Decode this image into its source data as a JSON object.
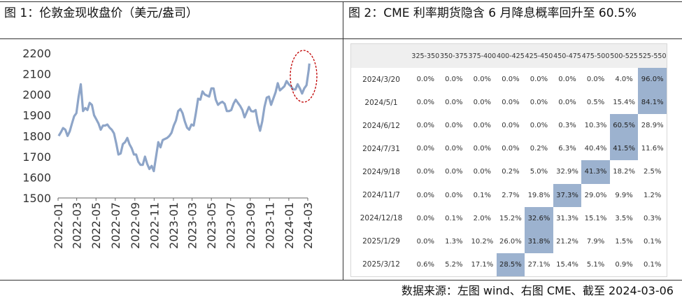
{
  "left_panel": {
    "title": "图 1：伦敦金现收盘价（美元/盎司）"
  },
  "right_panel": {
    "title": "图 2：CME 利率期货隐含 6 月降息概率回升至 60.5%"
  },
  "footer": {
    "source": "数据来源：左图 wind、右图 CME、截至 2024-03-06"
  },
  "chart_data": [
    {
      "type": "line",
      "title": "",
      "xlabel": "",
      "ylabel": "",
      "ylim": [
        1500,
        2200
      ],
      "yticks": [
        1500,
        1600,
        1700,
        1800,
        1900,
        2000,
        2100,
        2200
      ],
      "xticks": [
        "2022-01",
        "2022-03",
        "2022-05",
        "2022-07",
        "2022-09",
        "2022-11",
        "2023-01",
        "2023-03",
        "2023-05",
        "2023-07",
        "2023-09",
        "2023-11",
        "2024-01",
        "2024-03"
      ],
      "grid": false,
      "series": [
        {
          "color": "#8ea5c8",
          "x": [
            "2022-01-03",
            "2022-01-10",
            "2022-01-17",
            "2022-01-24",
            "2022-01-31",
            "2022-02-07",
            "2022-02-14",
            "2022-02-21",
            "2022-02-28",
            "2022-03-07",
            "2022-03-14",
            "2022-03-21",
            "2022-03-28",
            "2022-04-04",
            "2022-04-11",
            "2022-04-18",
            "2022-04-25",
            "2022-05-02",
            "2022-05-09",
            "2022-05-16",
            "2022-05-23",
            "2022-05-30",
            "2022-06-06",
            "2022-06-13",
            "2022-06-20",
            "2022-06-27",
            "2022-07-04",
            "2022-07-11",
            "2022-07-18",
            "2022-07-25",
            "2022-08-01",
            "2022-08-08",
            "2022-08-15",
            "2022-08-22",
            "2022-08-29",
            "2022-09-05",
            "2022-09-12",
            "2022-09-19",
            "2022-09-26",
            "2022-10-03",
            "2022-10-10",
            "2022-10-17",
            "2022-10-24",
            "2022-10-31",
            "2022-11-07",
            "2022-11-14",
            "2022-11-21",
            "2022-11-28",
            "2022-12-05",
            "2022-12-12",
            "2022-12-19",
            "2022-12-26",
            "2023-01-02",
            "2023-01-09",
            "2023-01-16",
            "2023-01-23",
            "2023-01-30",
            "2023-02-06",
            "2023-02-13",
            "2023-02-20",
            "2023-02-27",
            "2023-03-06",
            "2023-03-13",
            "2023-03-20",
            "2023-03-27",
            "2023-04-03",
            "2023-04-10",
            "2023-04-17",
            "2023-04-24",
            "2023-05-01",
            "2023-05-08",
            "2023-05-15",
            "2023-05-22",
            "2023-05-29",
            "2023-06-05",
            "2023-06-12",
            "2023-06-19",
            "2023-06-26",
            "2023-07-03",
            "2023-07-10",
            "2023-07-17",
            "2023-07-24",
            "2023-07-31",
            "2023-08-07",
            "2023-08-14",
            "2023-08-21",
            "2023-08-28",
            "2023-09-04",
            "2023-09-11",
            "2023-09-18",
            "2023-09-25",
            "2023-10-02",
            "2023-10-09",
            "2023-10-16",
            "2023-10-23",
            "2023-10-30",
            "2023-11-06",
            "2023-11-13",
            "2023-11-20",
            "2023-11-27",
            "2023-12-04",
            "2023-12-11",
            "2023-12-18",
            "2023-12-25",
            "2024-01-01",
            "2024-01-08",
            "2024-01-15",
            "2024-01-22",
            "2024-01-29",
            "2024-02-05",
            "2024-02-12",
            "2024-02-19",
            "2024-02-26",
            "2024-03-04",
            "2024-03-06"
          ],
          "values": [
            1800,
            1818,
            1838,
            1830,
            1800,
            1822,
            1860,
            1895,
            1910,
            1990,
            2050,
            1920,
            1935,
            1925,
            1960,
            1950,
            1900,
            1880,
            1860,
            1830,
            1850,
            1850,
            1855,
            1840,
            1830,
            1812,
            1765,
            1710,
            1715,
            1760,
            1770,
            1790,
            1760,
            1740,
            1710,
            1710,
            1675,
            1660,
            1660,
            1700,
            1665,
            1640,
            1655,
            1630,
            1700,
            1770,
            1745,
            1780,
            1785,
            1790,
            1800,
            1815,
            1850,
            1875,
            1920,
            1930,
            1910,
            1870,
            1840,
            1830,
            1855,
            1850,
            1910,
            1980,
            1975,
            2015,
            2000,
            1995,
            1990,
            2030,
            2030,
            1975,
            1950,
            1960,
            1965,
            1955,
            1920,
            1920,
            1925,
            1955,
            1975,
            1960,
            1945,
            1925,
            1890,
            1915,
            1940,
            1920,
            1918,
            1925,
            1865,
            1825,
            1870,
            1940,
            1985,
            1990,
            1950,
            1980,
            2010,
            2055,
            2020,
            2030,
            2040,
            2065,
            2050,
            2040,
            2025,
            2025,
            2050,
            2030,
            2005,
            2030,
            2045,
            2120,
            2150
          ]
        }
      ]
    },
    {
      "type": "table",
      "columns": [
        "325-350",
        "350-375",
        "375-400",
        "400-425",
        "425-450",
        "450-475",
        "475-500",
        "500-525",
        "525-550"
      ],
      "rows": [
        {
          "label": "2024/3/20",
          "values": [
            "0.0%",
            "0.0%",
            "0.0%",
            "0.0%",
            "0.0%",
            "0.0%",
            "0.0%",
            "4.0%",
            "96.0%"
          ],
          "highlight": 8
        },
        {
          "label": "2024/5/1",
          "values": [
            "0.0%",
            "0.0%",
            "0.0%",
            "0.0%",
            "0.0%",
            "0.0%",
            "0.5%",
            "15.4%",
            "84.1%"
          ],
          "highlight": 8
        },
        {
          "label": "2024/6/12",
          "values": [
            "0.0%",
            "0.0%",
            "0.0%",
            "0.0%",
            "0.0%",
            "0.3%",
            "10.3%",
            "60.5%",
            "28.9%"
          ],
          "highlight": 7
        },
        {
          "label": "2024/7/31",
          "values": [
            "0.0%",
            "0.0%",
            "0.0%",
            "0.0%",
            "0.2%",
            "6.3%",
            "40.4%",
            "41.5%",
            "11.6%"
          ],
          "highlight": 7
        },
        {
          "label": "2024/9/18",
          "values": [
            "0.0%",
            "0.0%",
            "0.0%",
            "0.2%",
            "5.0%",
            "32.9%",
            "41.3%",
            "18.2%",
            "2.5%"
          ],
          "highlight": 6
        },
        {
          "label": "2024/11/7",
          "values": [
            "0.0%",
            "0.0%",
            "0.1%",
            "2.7%",
            "19.8%",
            "37.3%",
            "29.0%",
            "9.9%",
            "1.2%"
          ],
          "highlight": 5
        },
        {
          "label": "2024/12/18",
          "values": [
            "0.0%",
            "0.1%",
            "2.0%",
            "15.2%",
            "32.6%",
            "31.3%",
            "15.1%",
            "3.5%",
            "0.3%"
          ],
          "highlight": 4
        },
        {
          "label": "2025/1/29",
          "values": [
            "0.0%",
            "1.3%",
            "10.2%",
            "26.0%",
            "31.8%",
            "21.2%",
            "7.9%",
            "1.5%",
            "0.1%"
          ],
          "highlight": 4
        },
        {
          "label": "2025/3/12",
          "values": [
            "0.6%",
            "5.2%",
            "17.1%",
            "28.5%",
            "27.1%",
            "15.4%",
            "5.1%",
            "0.9%",
            "0.1%"
          ],
          "highlight": 3
        }
      ],
      "highlight_color": "#9cb2cf"
    }
  ]
}
